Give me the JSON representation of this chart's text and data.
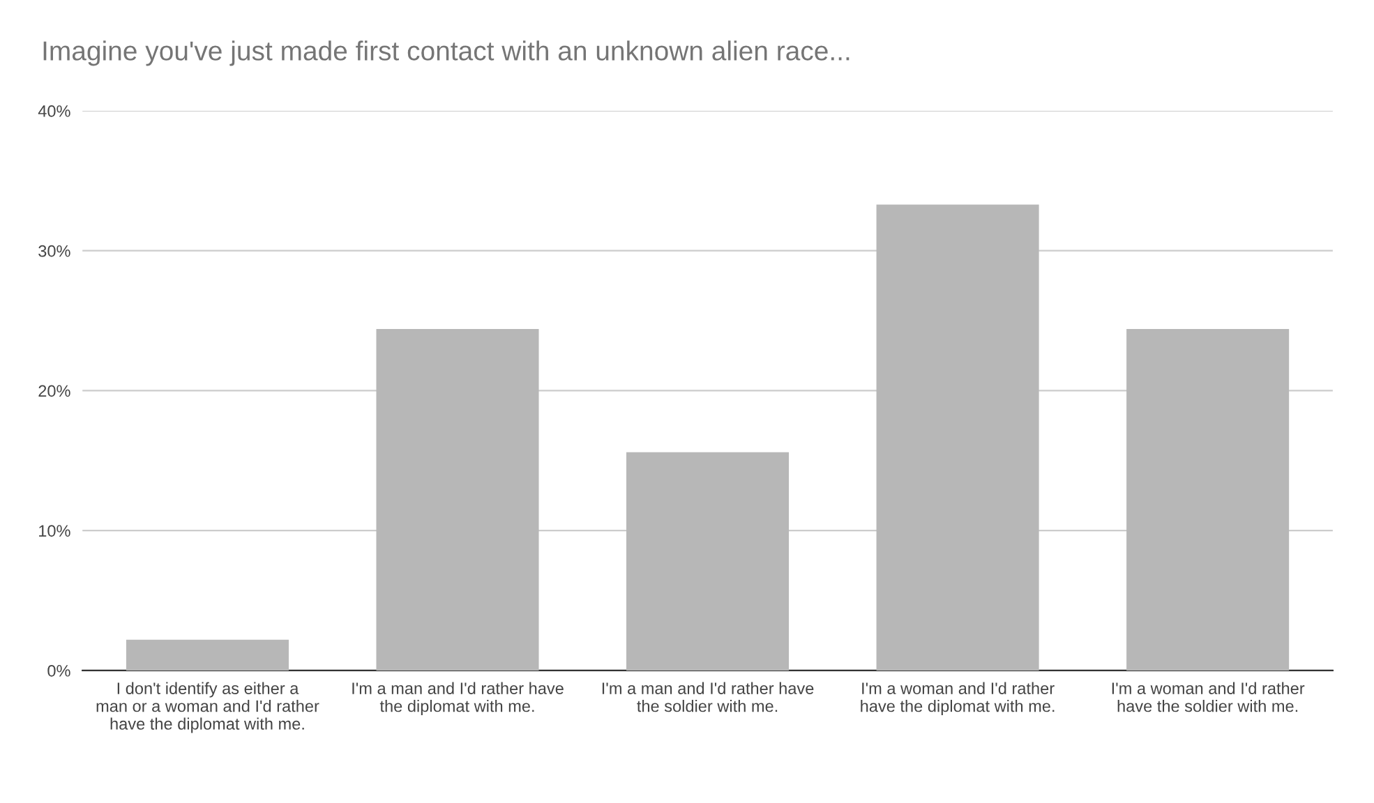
{
  "chart_data": {
    "type": "bar",
    "title": "Imagine you've just made first contact with an unknown alien race...",
    "categories": [
      "I don't identify as either a man or a woman and I'd rather have the diplomat with me.",
      "I'm a man and I'd rather have the diplomat with me.",
      "I'm a man and I'd rather have the soldier with me.",
      "I'm a woman and I'd rather have the diplomat with me.",
      "I'm a woman and I'd rather have the soldier with me."
    ],
    "values": [
      2.2,
      24.4,
      15.6,
      33.3,
      24.4
    ],
    "color": "#b7b7b7",
    "ylim": [
      0,
      40
    ],
    "yticks": [
      {
        "value": 0,
        "label": "0%"
      },
      {
        "value": 10,
        "label": "10%"
      },
      {
        "value": 20,
        "label": "20%"
      },
      {
        "value": 30,
        "label": "30%"
      },
      {
        "value": 40,
        "label": "40%"
      }
    ],
    "grid": "y"
  }
}
